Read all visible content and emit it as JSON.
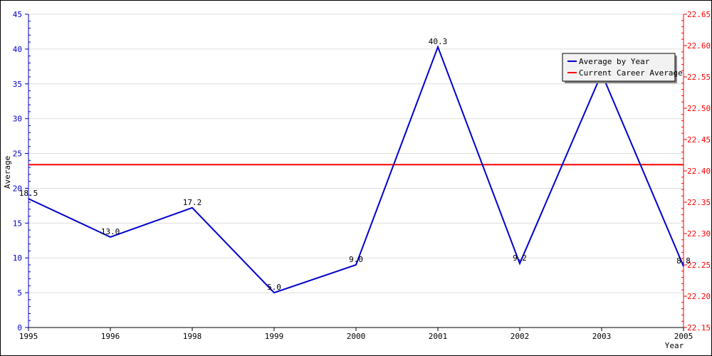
{
  "chart_data": {
    "type": "line",
    "categories": [
      "1995",
      "1996",
      "1998",
      "1999",
      "2000",
      "2001",
      "2002",
      "2003",
      "2005"
    ],
    "series": [
      {
        "name": "Average by Year",
        "color": "#0000cc",
        "axis": "left",
        "values": [
          18.5,
          13.0,
          17.2,
          5.0,
          9.0,
          40.3,
          9.2,
          36.5,
          8.8
        ],
        "labels": [
          "18.5",
          "13.0",
          "17.2",
          "5.0",
          "9.0",
          "40.3",
          "9.2",
          "",
          "8.8"
        ]
      },
      {
        "name": "Current Career Average",
        "color": "#ff0000",
        "axis": "right",
        "value": 22.41
      }
    ],
    "xlabel": "Year",
    "ylabel": "Average",
    "y_left": {
      "range": [
        0,
        45
      ],
      "ticks": [
        "0",
        "5",
        "10",
        "15",
        "20",
        "25",
        "30",
        "35",
        "40",
        "45"
      ],
      "color": "#0000cc"
    },
    "y_right": {
      "range": [
        22.15,
        22.65
      ],
      "ticks": [
        "22.15",
        "22.20",
        "22.25",
        "22.30",
        "22.35",
        "22.40",
        "22.45",
        "22.50",
        "22.55",
        "22.60",
        "22.65"
      ],
      "color": "#ff0000"
    },
    "grid": true,
    "legend_position": "top-right"
  }
}
